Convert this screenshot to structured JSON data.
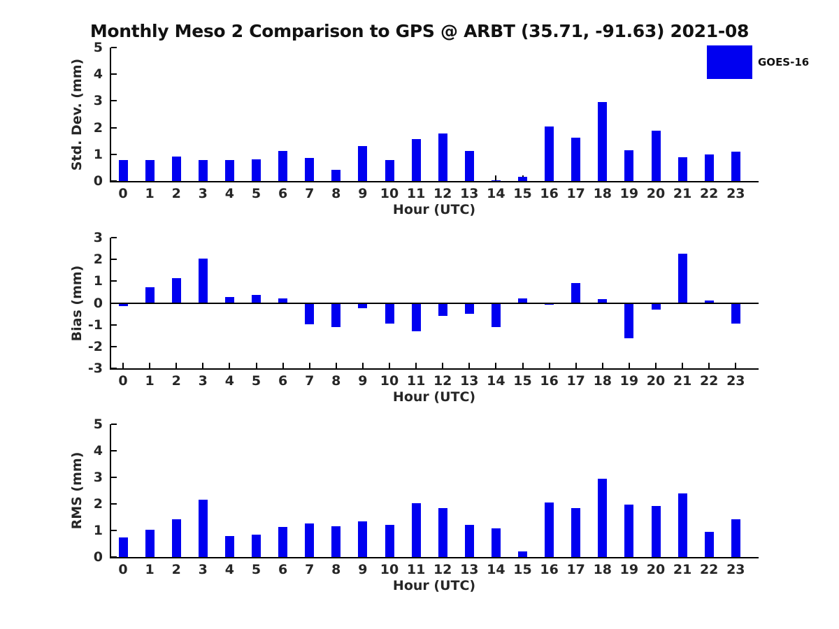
{
  "title": "Monthly Meso 2 Comparison to GPS @ ARBT (35.71, -91.63) 2021-08",
  "legend": {
    "label": "GOES-16",
    "color": "#0000f0"
  },
  "colors": {
    "bar": "#0000f0",
    "axis": "#000000",
    "text": "#262626",
    "background": "#ffffff"
  },
  "xlabel": "Hour (UTC)",
  "chart_data": [
    {
      "type": "bar",
      "id": "std-dev",
      "ylabel": "Std. Dev. (mm)",
      "xlabel": "Hour (UTC)",
      "legend": [
        "GOES-16"
      ],
      "grid": false,
      "ylim": [
        0,
        5
      ],
      "yticks": [
        0,
        1,
        2,
        3,
        4,
        5
      ],
      "categories": [
        "0",
        "1",
        "2",
        "3",
        "4",
        "5",
        "6",
        "7",
        "8",
        "9",
        "10",
        "11",
        "12",
        "13",
        "14",
        "15",
        "16",
        "17",
        "18",
        "19",
        "20",
        "21",
        "22",
        "23"
      ],
      "values": [
        0.78,
        0.78,
        0.92,
        0.78,
        0.78,
        0.82,
        1.12,
        0.87,
        0.43,
        1.32,
        0.78,
        1.56,
        1.79,
        1.12,
        0.03,
        0.16,
        2.05,
        1.63,
        2.95,
        1.16,
        1.89,
        0.89,
        0.99,
        1.09
      ]
    },
    {
      "type": "bar",
      "id": "bias",
      "ylabel": "Bias (mm)",
      "xlabel": "Hour (UTC)",
      "legend": [
        "GOES-16"
      ],
      "grid": false,
      "ylim": [
        -3,
        3
      ],
      "yticks": [
        -3,
        -2,
        -1,
        0,
        1,
        2,
        3
      ],
      "zero_line": true,
      "categories": [
        "0",
        "1",
        "2",
        "3",
        "4",
        "5",
        "6",
        "7",
        "8",
        "9",
        "10",
        "11",
        "12",
        "13",
        "14",
        "15",
        "16",
        "17",
        "18",
        "19",
        "20",
        "21",
        "22",
        "23"
      ],
      "values": [
        -0.12,
        0.73,
        1.13,
        2.03,
        0.27,
        0.37,
        0.2,
        -0.95,
        -1.08,
        -0.22,
        -0.92,
        -1.27,
        -0.55,
        -0.45,
        -1.08,
        0.2,
        -0.04,
        0.92,
        0.17,
        -1.6,
        -0.27,
        2.26,
        0.1,
        -0.92
      ]
    },
    {
      "type": "bar",
      "id": "rms",
      "ylabel": "RMS (mm)",
      "xlabel": "Hour (UTC)",
      "legend": [
        "GOES-16"
      ],
      "grid": false,
      "ylim": [
        0,
        5
      ],
      "yticks": [
        0,
        1,
        2,
        3,
        4,
        5
      ],
      "categories": [
        "0",
        "1",
        "2",
        "3",
        "4",
        "5",
        "6",
        "7",
        "8",
        "9",
        "10",
        "11",
        "12",
        "13",
        "14",
        "15",
        "16",
        "17",
        "18",
        "19",
        "20",
        "21",
        "22",
        "23"
      ],
      "values": [
        0.75,
        1.03,
        1.42,
        2.16,
        0.8,
        0.85,
        1.12,
        1.27,
        1.17,
        1.33,
        1.22,
        2.03,
        1.85,
        1.22,
        1.08,
        0.22,
        2.05,
        1.84,
        2.94,
        1.98,
        1.93,
        2.39,
        0.95,
        1.42
      ]
    }
  ]
}
